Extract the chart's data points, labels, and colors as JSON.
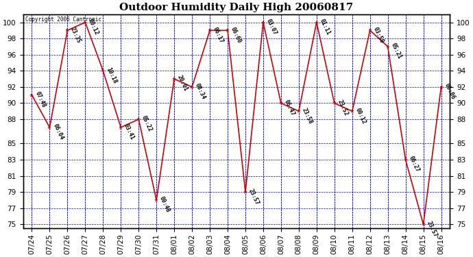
{
  "title": "Outdoor Humidity Daily High 20060817",
  "copyright_text": "Copyright 2006 Cantronic",
  "x_labels": [
    "07/24",
    "07/25",
    "07/26",
    "07/27",
    "07/28",
    "07/29",
    "07/30",
    "07/31",
    "08/01",
    "08/02",
    "08/03",
    "08/04",
    "08/05",
    "08/06",
    "08/07",
    "08/08",
    "08/09",
    "08/10",
    "08/11",
    "08/12",
    "08/13",
    "08/14",
    "08/15",
    "08/16"
  ],
  "y_ticks": [
    75,
    77,
    79,
    81,
    83,
    85,
    88,
    90,
    92,
    94,
    96,
    98,
    100
  ],
  "ylim": [
    74.5,
    101
  ],
  "points": [
    {
      "xi": 0,
      "y": 91,
      "label": "07:48"
    },
    {
      "xi": 1,
      "y": 87,
      "label": "06:04"
    },
    {
      "xi": 2,
      "y": 99,
      "label": "23:35"
    },
    {
      "xi": 3,
      "y": 100,
      "label": "00:12"
    },
    {
      "xi": 4,
      "y": 94,
      "label": "10:18"
    },
    {
      "xi": 5,
      "y": 87,
      "label": "03:41"
    },
    {
      "xi": 6,
      "y": 88,
      "label": "05:22"
    },
    {
      "xi": 7,
      "y": 78,
      "label": "00:48"
    },
    {
      "xi": 8,
      "y": 93,
      "label": "20:01"
    },
    {
      "xi": 9,
      "y": 92,
      "label": "08:34"
    },
    {
      "xi": 10,
      "y": 99,
      "label": "06:17"
    },
    {
      "xi": 11,
      "y": 99,
      "label": "06:60"
    },
    {
      "xi": 12,
      "y": 79,
      "label": "23:57"
    },
    {
      "xi": 13,
      "y": 100,
      "label": "03:07"
    },
    {
      "xi": 14,
      "y": 90,
      "label": "06:47"
    },
    {
      "xi": 15,
      "y": 89,
      "label": "23:58"
    },
    {
      "xi": 16,
      "y": 100,
      "label": "01:11"
    },
    {
      "xi": 17,
      "y": 90,
      "label": "23:52"
    },
    {
      "xi": 18,
      "y": 89,
      "label": "00:12"
    },
    {
      "xi": 19,
      "y": 99,
      "label": "03:50"
    },
    {
      "xi": 20,
      "y": 97,
      "label": "05:21"
    },
    {
      "xi": 21,
      "y": 83,
      "label": "06:27"
    },
    {
      "xi": 22,
      "y": 75,
      "label": "23:57"
    },
    {
      "xi": 23,
      "y": 92,
      "label": "06:06"
    }
  ],
  "line_color": "#cc0000",
  "marker_color": "#cc0000",
  "grid_color": "#0000cc",
  "background_color": "#ffffff",
  "label_color": "#000000",
  "title_fontsize": 11,
  "tick_fontsize": 7.5,
  "label_fontsize": 6
}
